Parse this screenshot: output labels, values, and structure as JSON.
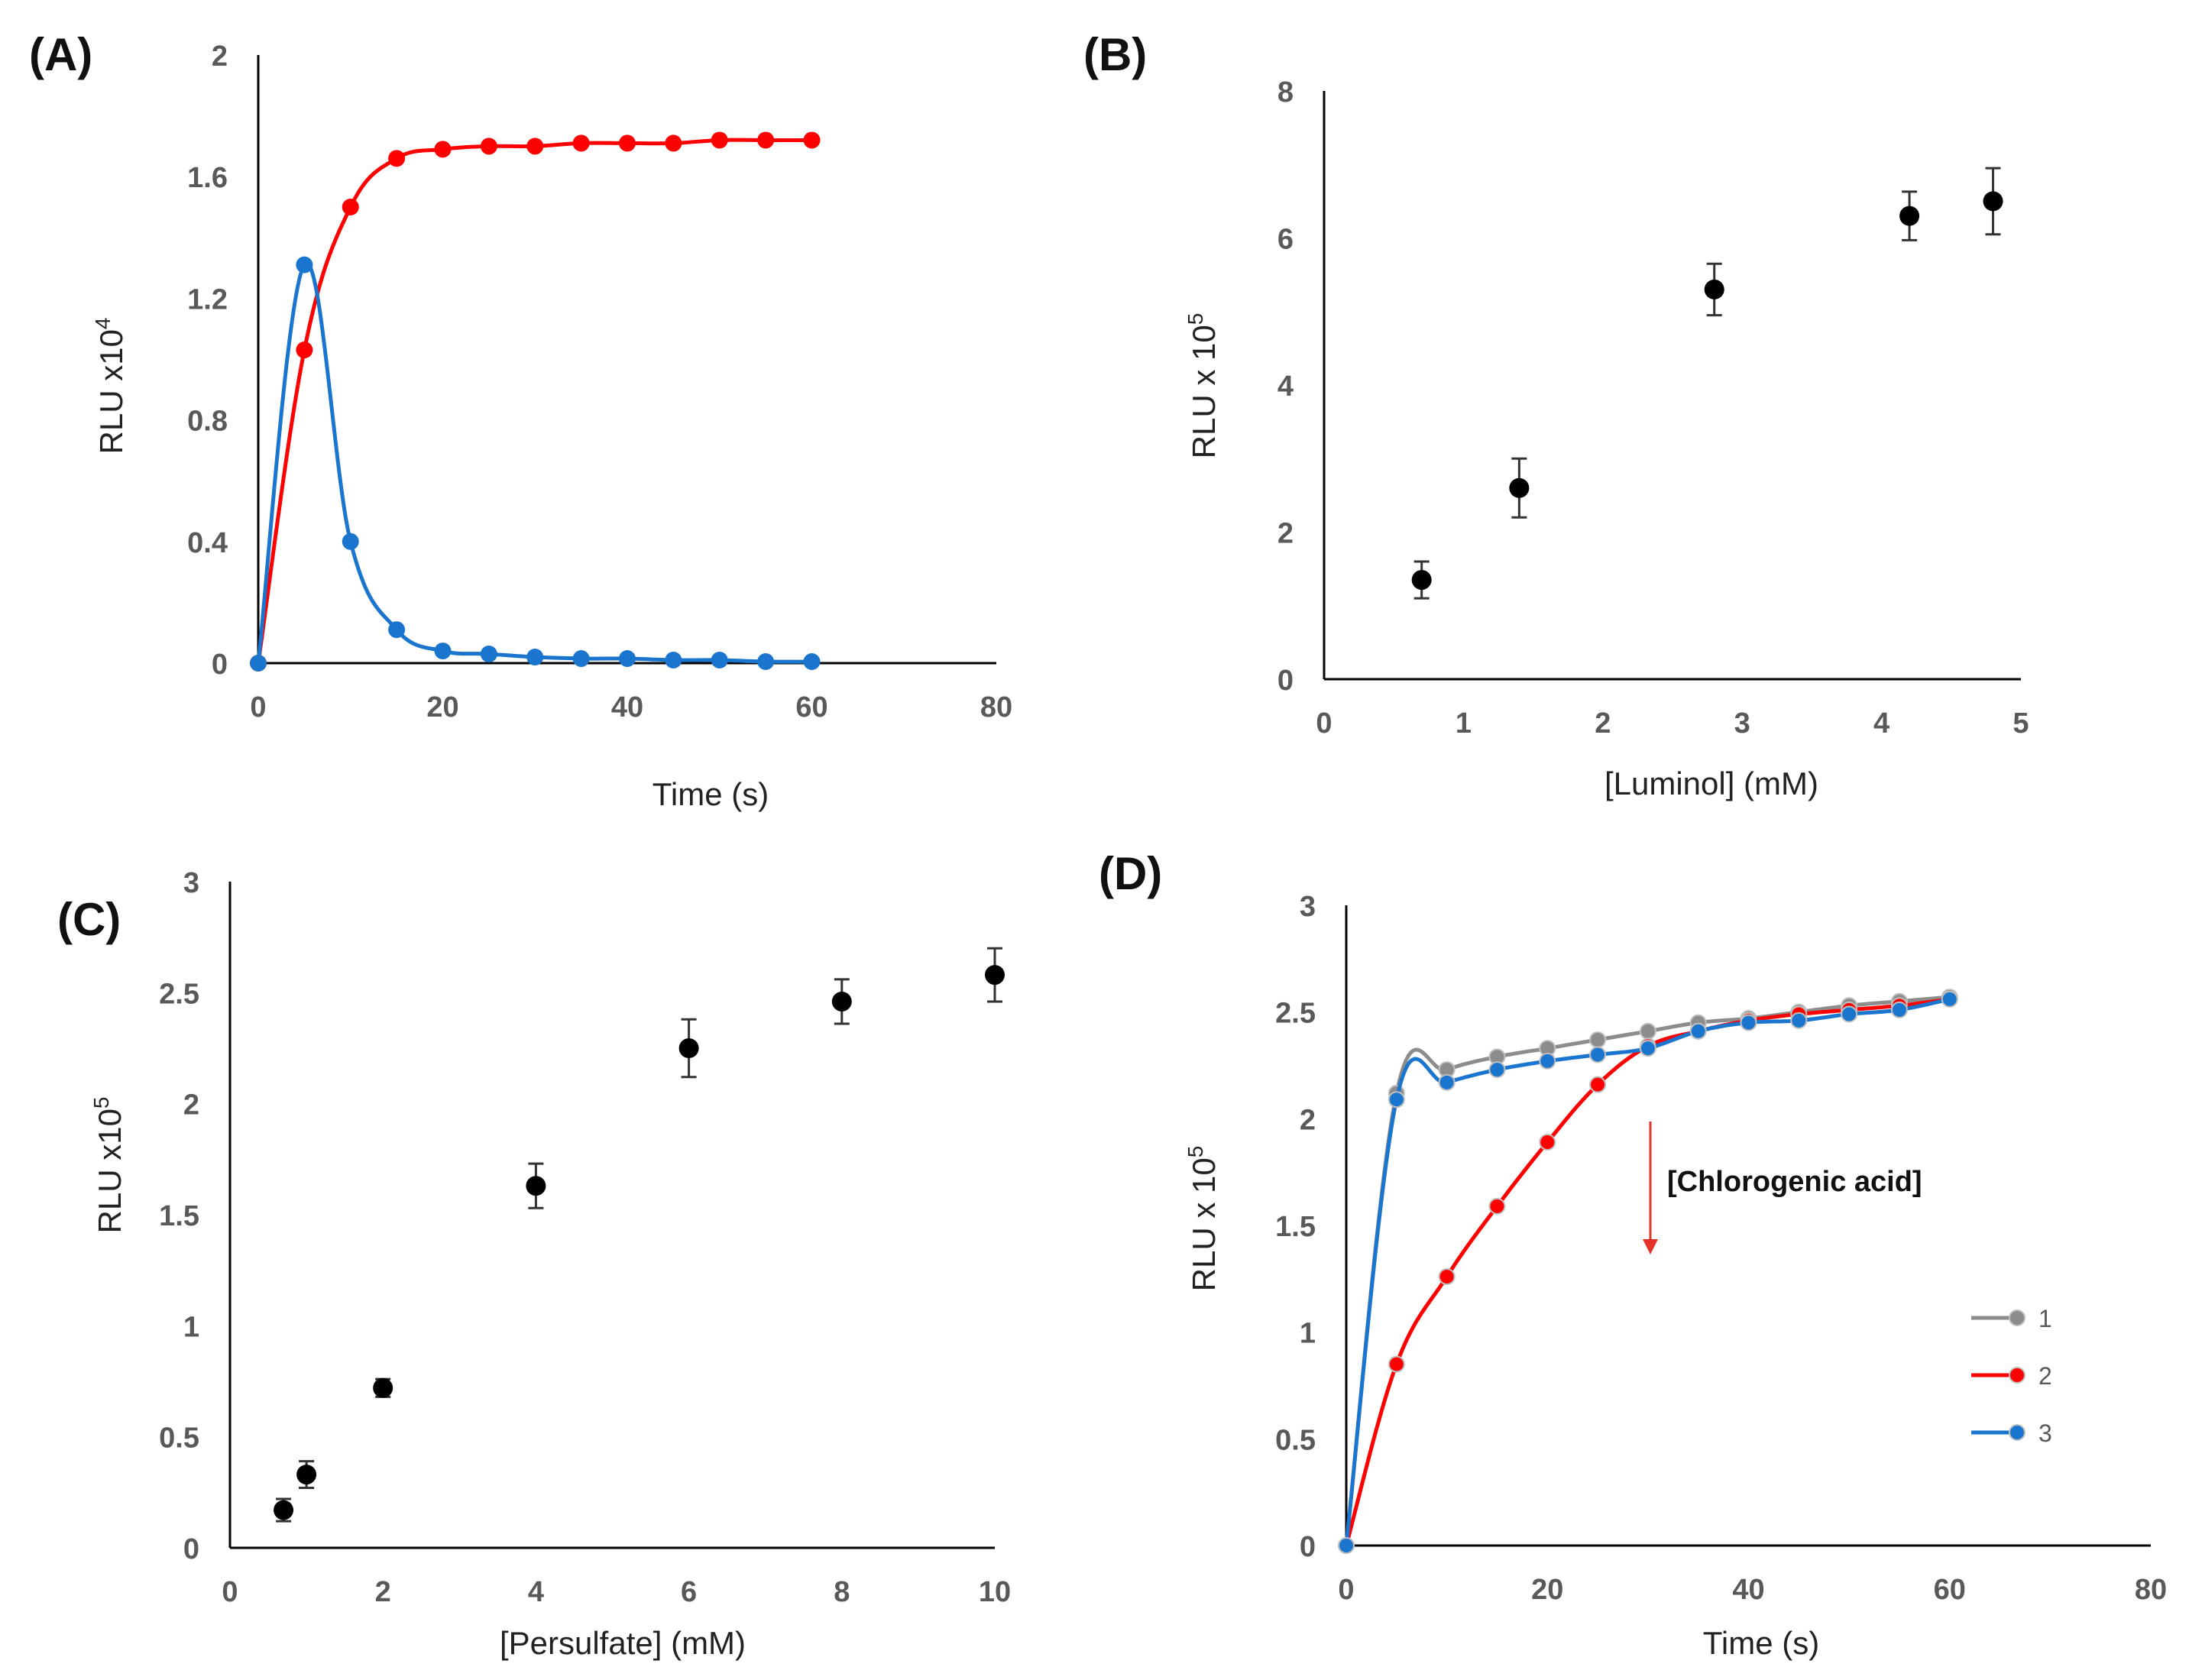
{
  "colors": {
    "red": "#ff0000",
    "blue": "#1a75cf",
    "gray": "#8c8c8c",
    "black": "#000000",
    "annotation_arrow": "#e6332a"
  },
  "chart_data": [
    {
      "id": "A",
      "panel_label": "(A)",
      "type": "line",
      "xlabel": "Time (s)",
      "ylabel": "RLU x10",
      "ylabel_sup": "4",
      "xlim": [
        0,
        80
      ],
      "ylim": [
        0,
        2
      ],
      "xticks": [
        0,
        20,
        40,
        60,
        80
      ],
      "yticks": [
        0,
        0.4,
        0.8,
        1.2,
        1.6,
        2
      ],
      "ytick_labels": [
        "0",
        "0.4",
        "0.8",
        "1.2",
        "1.6",
        "2"
      ],
      "grid": false,
      "series": [
        {
          "color_key": "red",
          "x": [
            0,
            5,
            10,
            15,
            20,
            25,
            30,
            35,
            40,
            45,
            50,
            55,
            60
          ],
          "values": [
            0,
            1.03,
            1.5,
            1.66,
            1.69,
            1.7,
            1.7,
            1.71,
            1.71,
            1.71,
            1.72,
            1.72,
            1.72
          ]
        },
        {
          "color_key": "blue",
          "x": [
            0,
            5,
            10,
            15,
            20,
            25,
            30,
            35,
            40,
            45,
            50,
            55,
            60
          ],
          "values": [
            0,
            1.31,
            0.4,
            0.11,
            0.04,
            0.03,
            0.02,
            0.015,
            0.015,
            0.01,
            0.01,
            0.005,
            0.005
          ]
        }
      ]
    },
    {
      "id": "B",
      "panel_label": "(B)",
      "type": "scatter",
      "xlabel": "[Luminol] (mM)",
      "ylabel": "RLU x 10",
      "ylabel_sup": "5",
      "xlim": [
        0,
        5
      ],
      "ylim": [
        0,
        8
      ],
      "xticks": [
        0,
        1,
        2,
        3,
        4,
        5
      ],
      "yticks": [
        0,
        2,
        4,
        6,
        8
      ],
      "ytick_labels": [
        "0",
        "2",
        "4",
        "6",
        "8"
      ],
      "grid": false,
      "series": [
        {
          "color_key": "black",
          "x": [
            0.7,
            1.4,
            2.8,
            4.2,
            4.8
          ],
          "values": [
            1.35,
            2.6,
            5.3,
            6.3,
            6.5
          ],
          "errors": [
            0.25,
            0.4,
            0.35,
            0.33,
            0.45
          ]
        }
      ]
    },
    {
      "id": "C",
      "panel_label": "(C)",
      "type": "scatter",
      "xlabel": "[Persulfate] (mM)",
      "ylabel": "RLU x10",
      "ylabel_sup": "5",
      "xlim": [
        0,
        10
      ],
      "ylim": [
        0,
        3
      ],
      "xticks": [
        0,
        2,
        4,
        6,
        8,
        10
      ],
      "yticks": [
        0,
        0.5,
        1,
        1.5,
        2,
        2.5,
        3
      ],
      "ytick_labels": [
        "0",
        "0.5",
        "1",
        "1.5",
        "2",
        "2.5",
        "3"
      ],
      "grid": false,
      "series": [
        {
          "color_key": "black",
          "x": [
            0.7,
            1,
            2,
            4,
            6,
            8,
            10
          ],
          "values": [
            0.17,
            0.33,
            0.72,
            1.63,
            2.25,
            2.46,
            2.58
          ],
          "errors": [
            0.05,
            0.06,
            0.04,
            0.1,
            0.13,
            0.1,
            0.12
          ]
        }
      ]
    },
    {
      "id": "D",
      "panel_label": "(D)",
      "type": "line",
      "xlabel": "Time (s)",
      "ylabel": "RLU x 10",
      "ylabel_sup": "5",
      "xlim": [
        0,
        80
      ],
      "ylim": [
        0,
        3
      ],
      "xticks": [
        0,
        20,
        40,
        60,
        80
      ],
      "yticks": [
        0,
        0.5,
        1,
        1.5,
        2,
        2.5,
        3
      ],
      "ytick_labels": [
        "0",
        "0.5",
        "1",
        "1.5",
        "2",
        "2.5",
        "3"
      ],
      "grid": false,
      "legend_position": "right",
      "annotation": "[Chlorogenic acid]",
      "series": [
        {
          "name": "1",
          "color_key": "gray",
          "x": [
            0,
            5,
            10,
            15,
            20,
            25,
            30,
            35,
            40,
            45,
            50,
            55,
            60
          ],
          "values": [
            0,
            2.12,
            2.23,
            2.29,
            2.33,
            2.37,
            2.41,
            2.45,
            2.47,
            2.5,
            2.53,
            2.55,
            2.57
          ]
        },
        {
          "name": "2",
          "color_key": "red",
          "x": [
            0,
            5,
            10,
            15,
            20,
            25,
            30,
            35,
            40,
            45,
            50,
            55,
            60
          ],
          "values": [
            0,
            0.85,
            1.26,
            1.59,
            1.89,
            2.16,
            2.34,
            2.41,
            2.46,
            2.49,
            2.51,
            2.53,
            2.56
          ]
        },
        {
          "name": "3",
          "color_key": "blue",
          "x": [
            0,
            5,
            10,
            15,
            20,
            25,
            30,
            35,
            40,
            45,
            50,
            55,
            60
          ],
          "values": [
            0,
            2.09,
            2.17,
            2.23,
            2.27,
            2.3,
            2.33,
            2.41,
            2.45,
            2.46,
            2.49,
            2.51,
            2.56
          ]
        }
      ]
    }
  ]
}
